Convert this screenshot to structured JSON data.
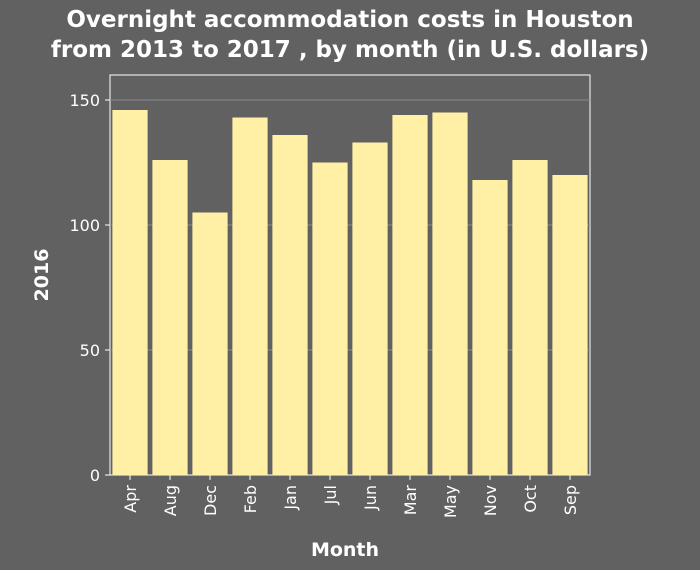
{
  "chart_data": {
    "type": "bar",
    "title": [
      "Overnight accommodation costs in Houston",
      "from 2013 to 2017 , by month (in U.S. dollars)"
    ],
    "xlabel": "Month",
    "ylabel": "2016",
    "categories": [
      "Apr",
      "Aug",
      "Dec",
      "Feb",
      "Jan",
      "Jul",
      "Jun",
      "Mar",
      "May",
      "Nov",
      "Oct",
      "Sep"
    ],
    "values": [
      146,
      126,
      105,
      143,
      136,
      125,
      133,
      144,
      145,
      118,
      126,
      120
    ],
    "ylim": [
      0,
      150
    ],
    "yticks": [
      0,
      50,
      100,
      150
    ],
    "grid": true,
    "colors": {
      "background": "#616161",
      "bar": "#FFF0A5",
      "grid": "#8a8a8a",
      "text": "#ffffff"
    }
  }
}
